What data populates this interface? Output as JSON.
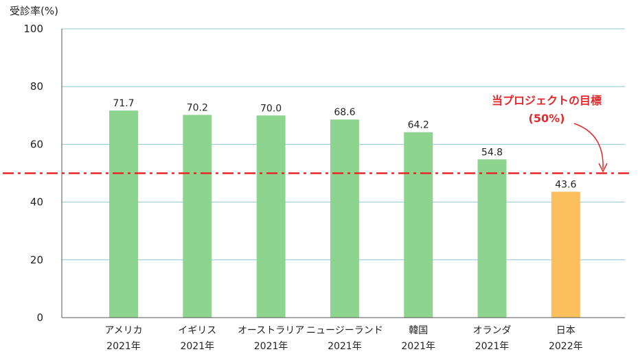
{
  "chart_data": {
    "type": "bar",
    "ylabel": "受診率(%)",
    "ylim": [
      0,
      100
    ],
    "yticks": [
      0,
      20,
      40,
      60,
      80,
      100
    ],
    "grid": true,
    "categories": [
      {
        "name": "アメリカ",
        "year": "2021年"
      },
      {
        "name": "イギリス",
        "year": "2021年"
      },
      {
        "name": "オーストラリア",
        "year": "2021年"
      },
      {
        "name": "ニュージーランド",
        "year": "2021年"
      },
      {
        "name": "韓国",
        "year": "2021年"
      },
      {
        "name": "オランダ",
        "year": "2021年"
      },
      {
        "name": "日本",
        "year": "2022年"
      }
    ],
    "values": [
      71.7,
      70.2,
      70.0,
      68.6,
      64.2,
      54.8,
      43.6
    ],
    "value_labels": [
      "71.7",
      "70.2",
      "70.0",
      "68.6",
      "64.2",
      "54.8",
      "43.6"
    ],
    "highlight_index": 6,
    "target_line": {
      "value": 50,
      "label": "当プロジェクトの目標",
      "sublabel": "(50%)"
    },
    "colors": {
      "bar": "#8dd48f",
      "highlight": "#fbbf5e",
      "target": "#e8262a",
      "grid": "#8ec6dc"
    }
  }
}
